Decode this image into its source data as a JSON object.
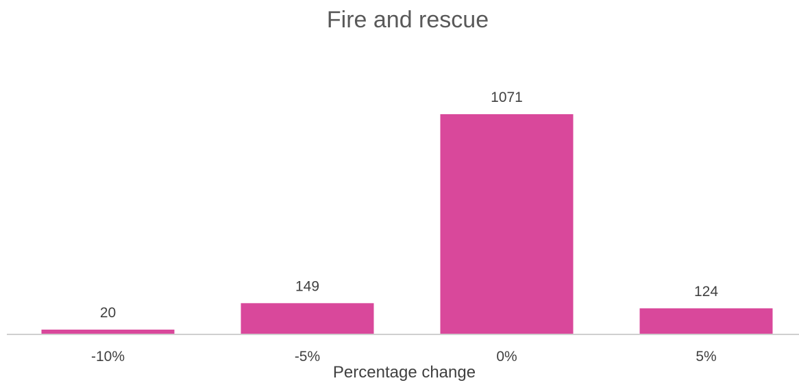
{
  "chart_data": {
    "type": "bar",
    "title": "Fire and rescue",
    "xlabel": "Percentage change",
    "ylabel": "",
    "categories": [
      "-10%",
      "-5%",
      "0%",
      "5%"
    ],
    "values": [
      20,
      149,
      1071,
      124
    ],
    "data_labels": [
      "20",
      "149",
      "1071",
      "124"
    ],
    "ylim": [
      0,
      1071
    ],
    "grid": false,
    "legend": "none",
    "bar_color": "#d9489b",
    "axis_color": "#bfbfbf",
    "text_color": "#404040"
  }
}
